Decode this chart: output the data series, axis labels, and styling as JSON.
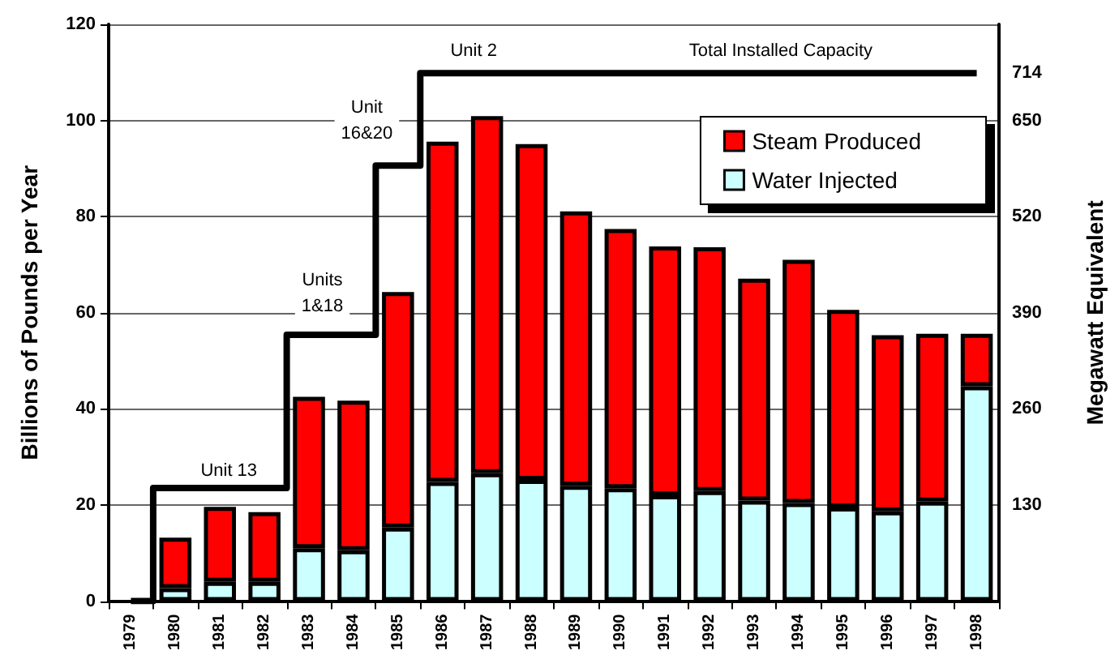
{
  "chart_data": {
    "type": "bar",
    "ylabel": "Billions of Pounds per Year",
    "y2label": "Megawatt Equivalent",
    "categories": [
      "1979",
      "1980",
      "1981",
      "1982",
      "1983",
      "1984",
      "1985",
      "1986",
      "1987",
      "1988",
      "1989",
      "1990",
      "1991",
      "1992",
      "1993",
      "1994",
      "1995",
      "1996",
      "1997",
      "1998"
    ],
    "stacked": true,
    "series": [
      {
        "name": "Water Injected",
        "color": "#ccffff",
        "values": [
          null,
          2.7,
          4.0,
          4.0,
          11.0,
          10.6,
          15.3,
          24.8,
          26.6,
          25.2,
          24.0,
          23.5,
          22.0,
          22.9,
          20.9,
          20.4,
          19.5,
          18.7,
          20.7,
          44.7
        ]
      },
      {
        "name": "Steam Produced",
        "color": "#ff0000",
        "values": [
          null,
          10.5,
          15.6,
          14.5,
          31.5,
          31.1,
          49.0,
          70.8,
          74.3,
          69.9,
          57.1,
          53.9,
          51.8,
          50.7,
          46.2,
          50.6,
          41.1,
          36.6,
          34.9,
          10.9
        ]
      },
      {
        "type": "step",
        "axis": "y2",
        "color": "#000000",
        "values": [
          0,
          153,
          153,
          153,
          360,
          360,
          589,
          714,
          714,
          714,
          714,
          714,
          714,
          714,
          714,
          714,
          714,
          714,
          714,
          714
        ]
      }
    ],
    "ylim": [
      0,
      120
    ],
    "yticks": [
      0,
      20,
      40,
      60,
      80,
      100,
      120
    ],
    "y2lim": [
      0,
      780
    ],
    "y2ticks": [
      130,
      260,
      390,
      520,
      650,
      714
    ],
    "grid": "y",
    "legend": "top right",
    "annotations": [
      "Unit 13",
      "Units\n1&18",
      "Unit\n16&20",
      "Unit 2",
      "Total Installed Capacity"
    ]
  }
}
